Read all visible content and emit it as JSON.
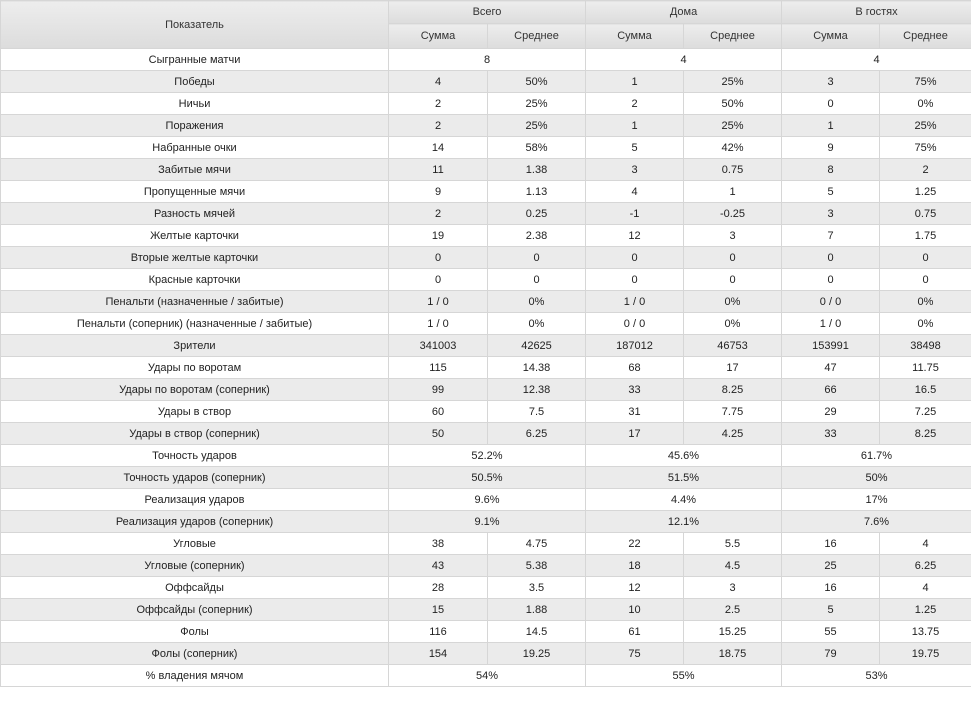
{
  "header": {
    "metric_label": "Показатель",
    "groups": [
      "Всего",
      "Дома",
      "В гостях"
    ],
    "sub": [
      "Сумма",
      "Среднее",
      "Сумма",
      "Среднее",
      "Сумма",
      "Среднее"
    ]
  },
  "rows": [
    {
      "label": "Сыгранные матчи",
      "merged": [
        "8",
        "4",
        "4"
      ]
    },
    {
      "label": "Победы",
      "cells": [
        "4",
        "50%",
        "1",
        "25%",
        "3",
        "75%"
      ]
    },
    {
      "label": "Ничьи",
      "cells": [
        "2",
        "25%",
        "2",
        "50%",
        "0",
        "0%"
      ]
    },
    {
      "label": "Поражения",
      "cells": [
        "2",
        "25%",
        "1",
        "25%",
        "1",
        "25%"
      ]
    },
    {
      "label": "Набранные очки",
      "cells": [
        "14",
        "58%",
        "5",
        "42%",
        "9",
        "75%"
      ]
    },
    {
      "label": "Забитые мячи",
      "cells": [
        "11",
        "1.38",
        "3",
        "0.75",
        "8",
        "2"
      ]
    },
    {
      "label": "Пропущенные мячи",
      "cells": [
        "9",
        "1.13",
        "4",
        "1",
        "5",
        "1.25"
      ]
    },
    {
      "label": "Разность мячей",
      "cells": [
        "2",
        "0.25",
        "-1",
        "-0.25",
        "3",
        "0.75"
      ]
    },
    {
      "label": "Желтые карточки",
      "cells": [
        "19",
        "2.38",
        "12",
        "3",
        "7",
        "1.75"
      ]
    },
    {
      "label": "Вторые желтые карточки",
      "cells": [
        "0",
        "0",
        "0",
        "0",
        "0",
        "0"
      ]
    },
    {
      "label": "Красные карточки",
      "cells": [
        "0",
        "0",
        "0",
        "0",
        "0",
        "0"
      ]
    },
    {
      "label": "Пенальти (назначенные / забитые)",
      "cells": [
        "1 / 0",
        "0%",
        "1 / 0",
        "0%",
        "0 / 0",
        "0%"
      ]
    },
    {
      "label": "Пенальти (соперник) (назначенные / забитые)",
      "cells": [
        "1 / 0",
        "0%",
        "0 / 0",
        "0%",
        "1 / 0",
        "0%"
      ]
    },
    {
      "label": "Зрители",
      "cells": [
        "341003",
        "42625",
        "187012",
        "46753",
        "153991",
        "38498"
      ]
    },
    {
      "label": "Удары по воротам",
      "cells": [
        "115",
        "14.38",
        "68",
        "17",
        "47",
        "11.75"
      ]
    },
    {
      "label": "Удары по воротам (соперник)",
      "cells": [
        "99",
        "12.38",
        "33",
        "8.25",
        "66",
        "16.5"
      ]
    },
    {
      "label": "Удары в створ",
      "cells": [
        "60",
        "7.5",
        "31",
        "7.75",
        "29",
        "7.25"
      ]
    },
    {
      "label": "Удары в створ (соперник)",
      "cells": [
        "50",
        "6.25",
        "17",
        "4.25",
        "33",
        "8.25"
      ]
    },
    {
      "label": "Точность ударов",
      "merged": [
        "52.2%",
        "45.6%",
        "61.7%"
      ]
    },
    {
      "label": "Точность ударов (соперник)",
      "merged": [
        "50.5%",
        "51.5%",
        "50%"
      ]
    },
    {
      "label": "Реализация ударов",
      "merged": [
        "9.6%",
        "4.4%",
        "17%"
      ]
    },
    {
      "label": "Реализация ударов (соперник)",
      "merged": [
        "9.1%",
        "12.1%",
        "7.6%"
      ]
    },
    {
      "label": "Угловые",
      "cells": [
        "38",
        "4.75",
        "22",
        "5.5",
        "16",
        "4"
      ]
    },
    {
      "label": "Угловые (соперник)",
      "cells": [
        "43",
        "5.38",
        "18",
        "4.5",
        "25",
        "6.25"
      ]
    },
    {
      "label": "Оффсайды",
      "cells": [
        "28",
        "3.5",
        "12",
        "3",
        "16",
        "4"
      ]
    },
    {
      "label": "Оффсайды (соперник)",
      "cells": [
        "15",
        "1.88",
        "10",
        "2.5",
        "5",
        "1.25"
      ]
    },
    {
      "label": "Фолы",
      "cells": [
        "116",
        "14.5",
        "61",
        "15.25",
        "55",
        "13.75"
      ]
    },
    {
      "label": "Фолы (соперник)",
      "cells": [
        "154",
        "19.25",
        "75",
        "18.75",
        "79",
        "19.75"
      ]
    },
    {
      "label": "% владения мячом",
      "merged": [
        "54%",
        "55%",
        "53%"
      ]
    }
  ]
}
